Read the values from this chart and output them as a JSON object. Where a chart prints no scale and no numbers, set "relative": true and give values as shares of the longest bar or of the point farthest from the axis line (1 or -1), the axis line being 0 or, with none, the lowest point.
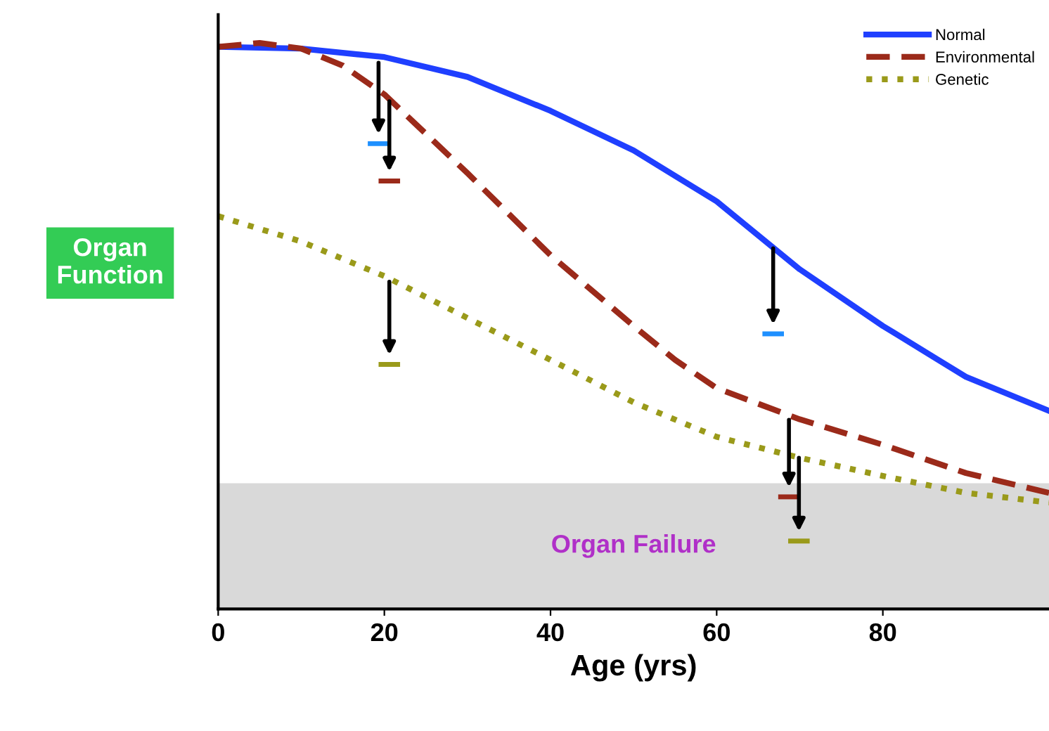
{
  "chart_data": {
    "type": "line",
    "relative": true,
    "xlabel": "Age (yrs)",
    "ylabel": "Organ Function",
    "xlim": [
      0,
      100
    ],
    "xticks": [
      0,
      20,
      40,
      60,
      80
    ],
    "grid": false,
    "legend": "top right",
    "marker": "none",
    "series": [
      {
        "name": "Normal",
        "color": "#1f3fff",
        "line_style": "solid",
        "x": [
          0,
          10,
          20,
          30,
          40,
          50,
          60,
          70,
          80,
          90,
          100
        ],
        "values": [
          0.993,
          0.99,
          0.975,
          0.94,
          0.88,
          0.81,
          0.72,
          0.6,
          0.5,
          0.41,
          0.35
        ]
      },
      {
        "name": "Environmental",
        "color": "#9b2a1a",
        "line_style": "dashed",
        "x": [
          0,
          5,
          10,
          15,
          20,
          30,
          40,
          50,
          55,
          60,
          70,
          80,
          90,
          100
        ],
        "values": [
          0.993,
          1.0,
          0.99,
          0.96,
          0.909,
          0.77,
          0.625,
          0.5,
          0.44,
          0.39,
          0.335,
          0.29,
          0.24,
          0.205
        ]
      },
      {
        "name": "Genetic",
        "color": "#9a9a1a",
        "line_style": "dotted",
        "x": [
          0,
          10,
          20,
          30,
          40,
          50,
          60,
          70,
          80,
          90,
          100
        ],
        "values": [
          0.694,
          0.649,
          0.588,
          0.514,
          0.44,
          0.365,
          0.304,
          0.267,
          0.235,
          0.205,
          0.188
        ]
      }
    ],
    "bands": [
      {
        "axis": "y",
        "from": 0,
        "to": 0.222,
        "label": "Organ Failure",
        "color": "#d9d9d9"
      }
    ]
  }
}
